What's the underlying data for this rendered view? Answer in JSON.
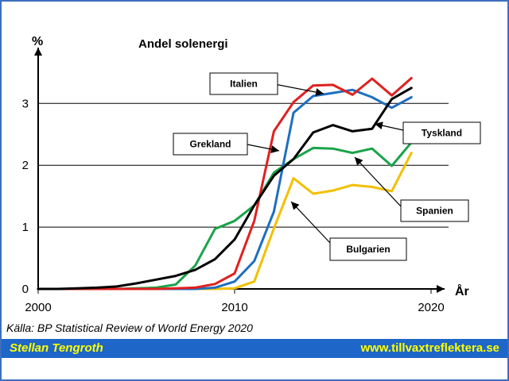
{
  "chart_data": {
    "type": "line",
    "title": "Andel solenergi",
    "ylabel": "%",
    "xlabel": "År",
    "xlim": [
      2000,
      2021
    ],
    "ylim": [
      0,
      4
    ],
    "xticks": [
      2000,
      2010,
      2020
    ],
    "yticks": [
      0,
      1,
      2,
      3
    ],
    "grid": true,
    "x": [
      2000,
      2001,
      2002,
      2003,
      2004,
      2005,
      2006,
      2007,
      2008,
      2009,
      2010,
      2011,
      2012,
      2013,
      2014,
      2015,
      2016,
      2017,
      2018,
      2019
    ],
    "series": [
      {
        "name": "Spanien",
        "color": "#1aa34a",
        "values": [
          0,
          0,
          0,
          0,
          0,
          0.01,
          0.02,
          0.07,
          0.38,
          0.97,
          1.1,
          1.35,
          1.88,
          2.1,
          2.28,
          2.27,
          2.2,
          2.27,
          1.99,
          2.37
        ]
      },
      {
        "name": "Bulgarien",
        "color": "#f2c000",
        "values": [
          0,
          0,
          0,
          0,
          0,
          0,
          0,
          0,
          0,
          0,
          0.01,
          0.12,
          0.98,
          1.79,
          1.54,
          1.59,
          1.68,
          1.65,
          1.58,
          2.2
        ]
      },
      {
        "name": "Grekland",
        "color": "#1e6fc0",
        "values": [
          0,
          0,
          0,
          0,
          0,
          0,
          0,
          0,
          0,
          0.02,
          0.12,
          0.45,
          1.25,
          2.85,
          3.12,
          3.17,
          3.22,
          3.1,
          2.93,
          3.1
        ]
      },
      {
        "name": "Italien",
        "color": "#e02020",
        "values": [
          0,
          0,
          0,
          0,
          0,
          0,
          0,
          0.01,
          0.02,
          0.08,
          0.25,
          1.1,
          2.55,
          3.02,
          3.29,
          3.3,
          3.14,
          3.4,
          3.13,
          3.41
        ]
      },
      {
        "name": "Tyskland",
        "color": "#000000",
        "values": [
          0,
          0,
          0.01,
          0.02,
          0.04,
          0.09,
          0.15,
          0.21,
          0.31,
          0.48,
          0.8,
          1.35,
          1.83,
          2.1,
          2.53,
          2.65,
          2.55,
          2.59,
          3.07,
          3.25
        ]
      }
    ],
    "labels": [
      {
        "text": "Italien"
      },
      {
        "text": "Grekland"
      },
      {
        "text": "Tyskland"
      },
      {
        "text": "Spanien"
      },
      {
        "text": "Bulgarien"
      }
    ],
    "source": "Källa: BP Statistical Review of World Energy 2020"
  },
  "footer": {
    "author": "Stellan Tengroth",
    "website": "www.tillvaxtreflektera.se"
  }
}
